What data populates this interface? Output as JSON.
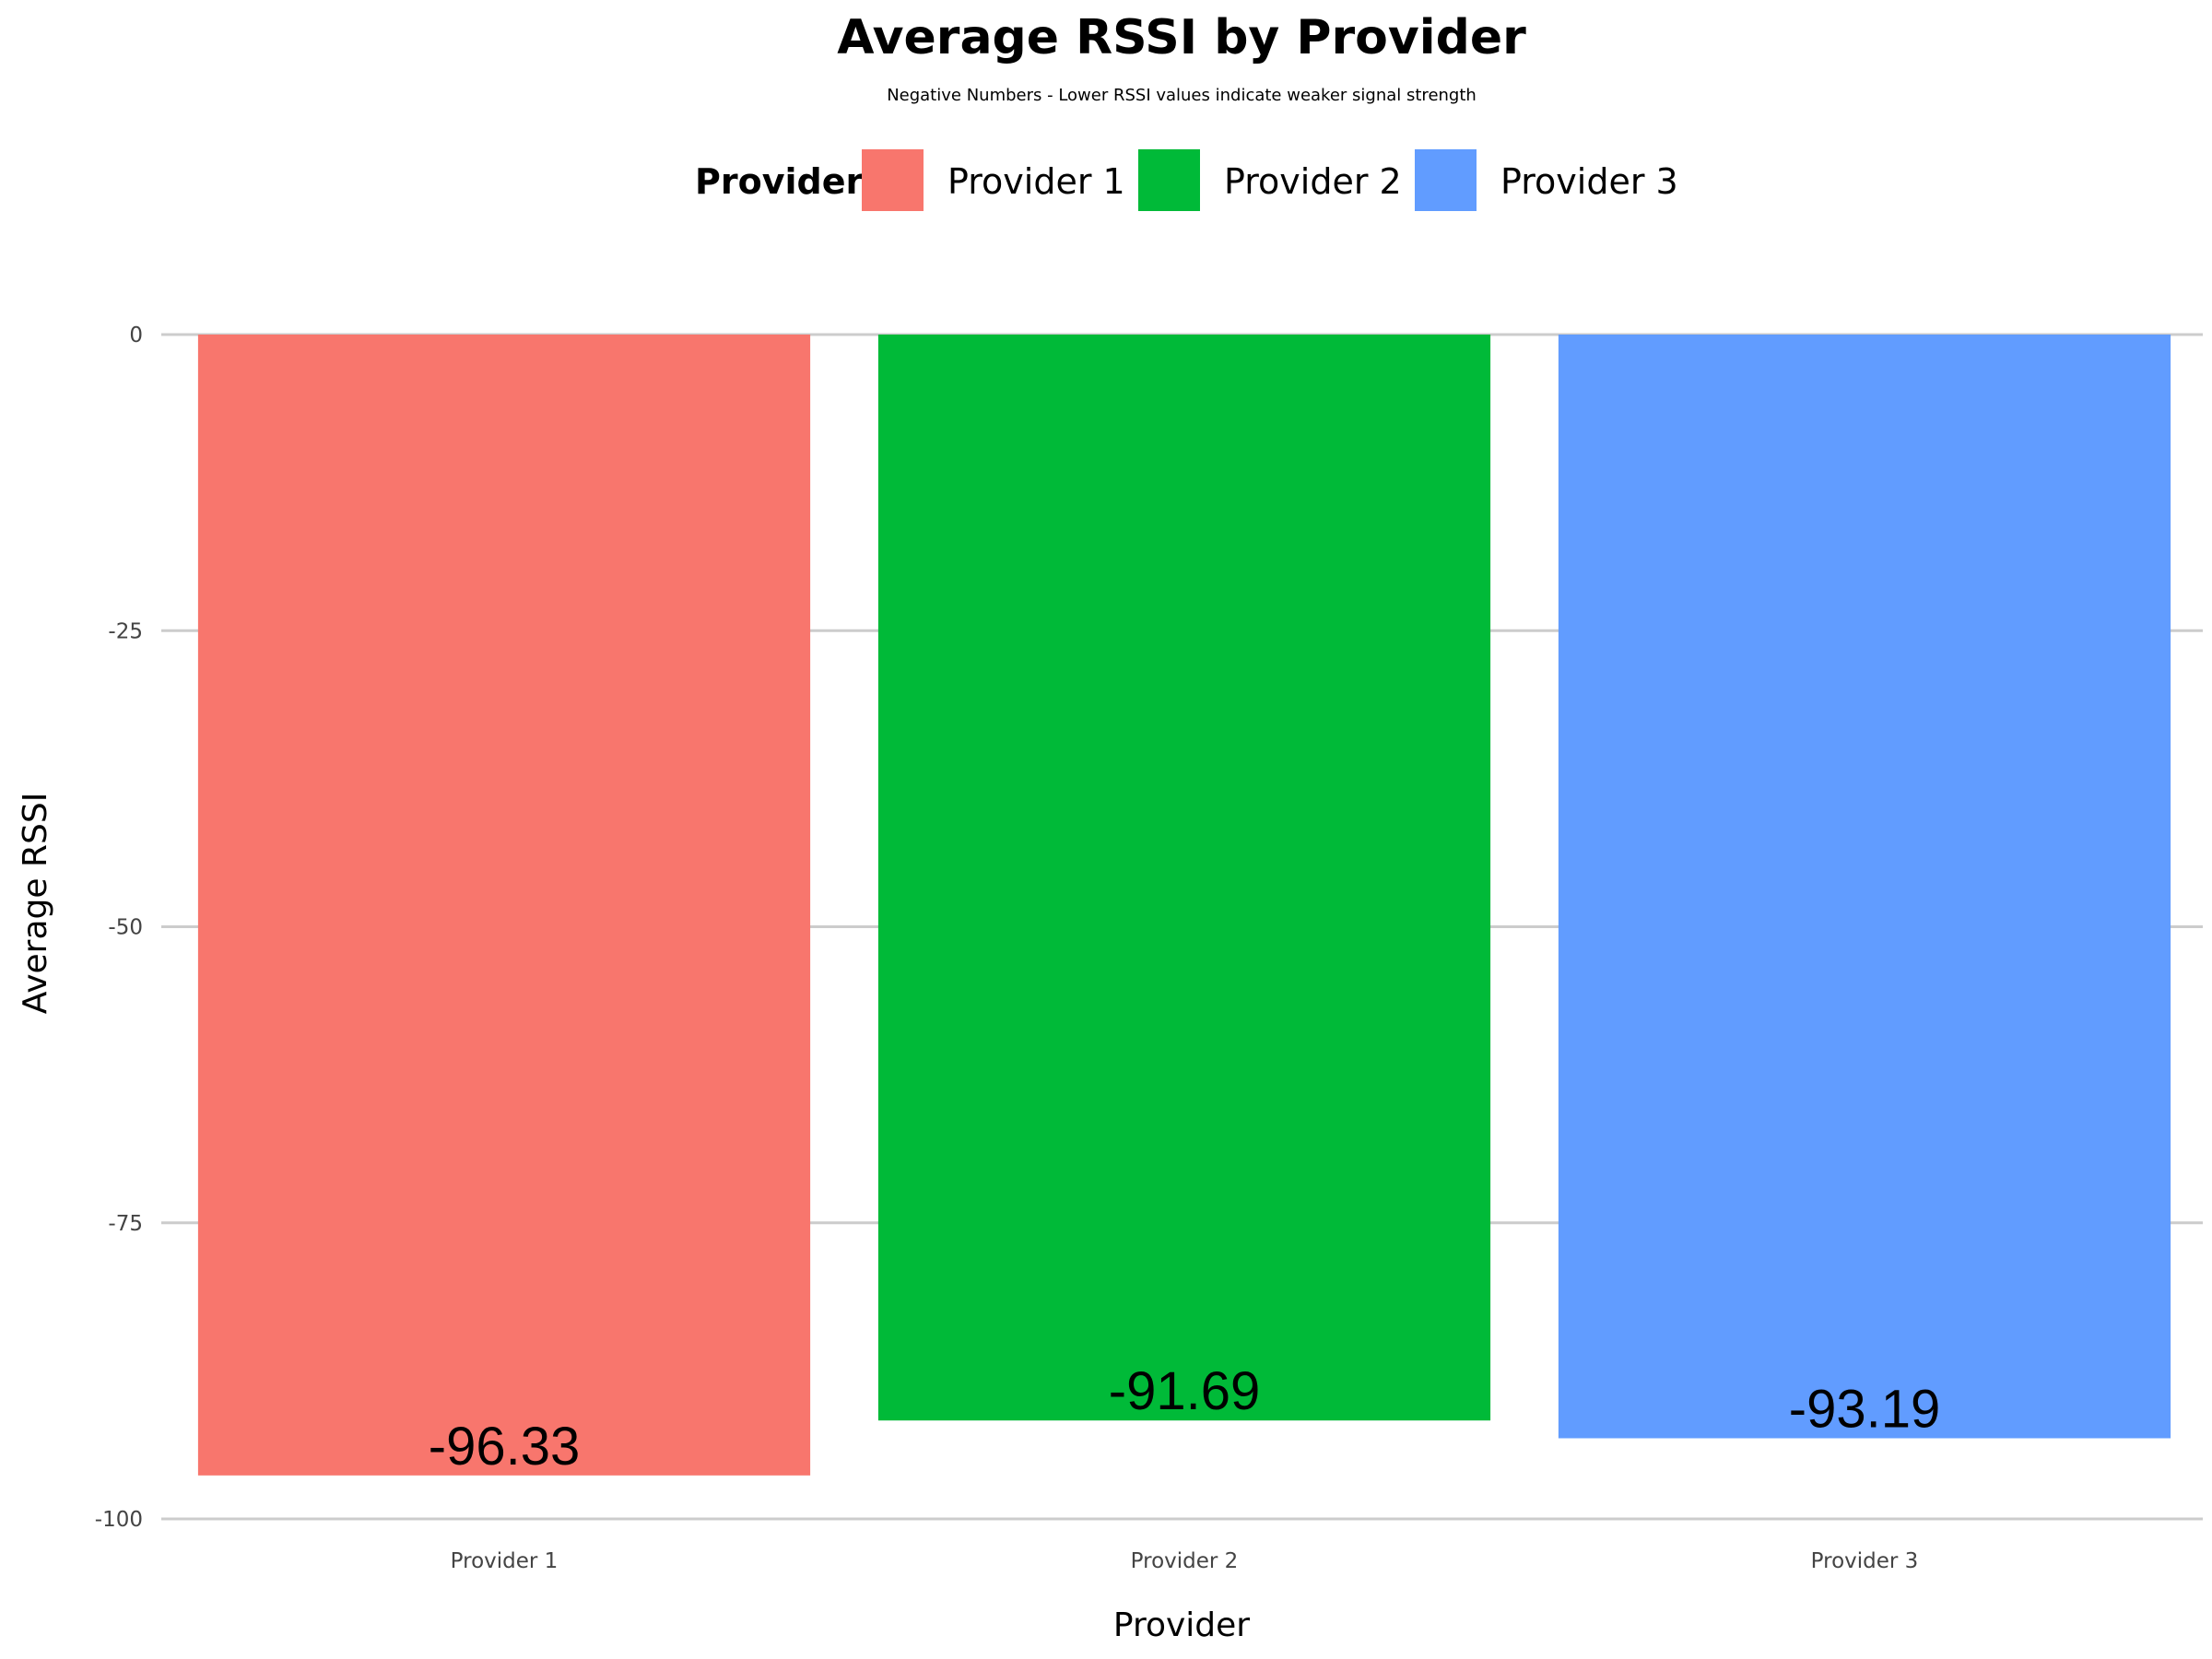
{
  "chart_data": {
    "type": "bar",
    "title": "Average RSSI by Provider",
    "subtitle": "Negative Numbers - Lower RSSI values indicate weaker signal strength",
    "xlabel": "Provider",
    "ylabel": "Average RSSI",
    "categories": [
      "Provider 1",
      "Provider 2",
      "Provider 3"
    ],
    "values": [
      -96.33,
      -91.69,
      -93.19
    ],
    "data_labels": [
      "-96.33",
      "-91.69",
      "-93.19"
    ],
    "colors": [
      "#F8766D",
      "#00BA38",
      "#619CFF"
    ],
    "ylim": [
      -100,
      0
    ],
    "yticks": [
      0,
      -25,
      -50,
      -75,
      -100
    ],
    "ytick_labels": [
      "0",
      "-25",
      "-50",
      "-75",
      "-100"
    ],
    "grid": "horizontal",
    "legend": {
      "title": "Provider",
      "position": "top",
      "entries": [
        "Provider 1",
        "Provider 2",
        "Provider 3"
      ]
    }
  }
}
